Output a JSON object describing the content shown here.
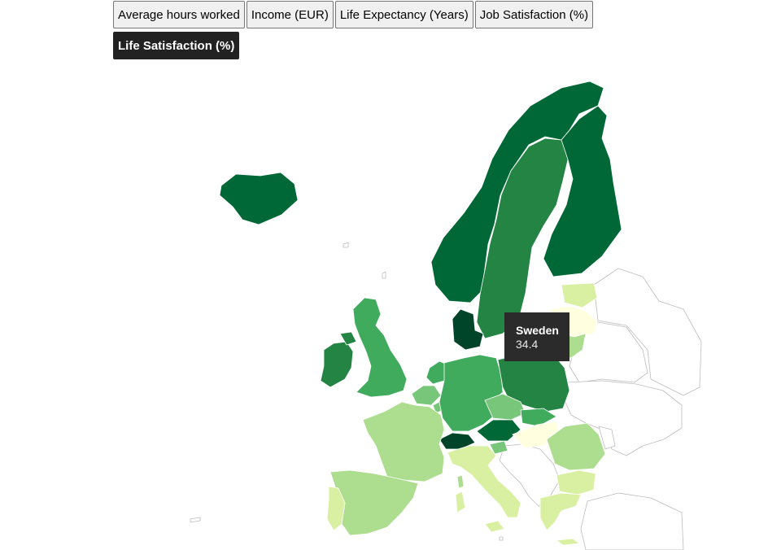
{
  "buttons": [
    {
      "label": "Average hours worked",
      "active": false
    },
    {
      "label": "Income (EUR)",
      "active": false
    },
    {
      "label": "Life Expectancy (Years)",
      "active": false
    },
    {
      "label": "Job Satisfaction (%)",
      "active": false
    },
    {
      "label": "Life Satisfaction (%)",
      "active": true
    }
  ],
  "colors": {
    "scale": [
      "#ffffe0",
      "#d9f0a3",
      "#addd8e",
      "#78c679",
      "#41ab5d",
      "#238443",
      "#006837",
      "#004529"
    ],
    "no_data": "#ffffff",
    "tooltip_bg": "#2b2b2b"
  },
  "tooltip": {
    "country": "Sweden",
    "value": "34.4"
  },
  "countries": [
    {
      "id": "iceland",
      "level": 6
    },
    {
      "id": "norway",
      "level": 6
    },
    {
      "id": "sweden",
      "level": 5
    },
    {
      "id": "finland",
      "level": 6
    },
    {
      "id": "denmark",
      "level": 7
    },
    {
      "id": "estonia",
      "level": 1
    },
    {
      "id": "latvia",
      "level": 0
    },
    {
      "id": "lithuania",
      "level": 2
    },
    {
      "id": "ireland",
      "level": 5
    },
    {
      "id": "northern-ireland",
      "level": 5
    },
    {
      "id": "united-kingdom",
      "level": 4
    },
    {
      "id": "netherlands",
      "level": 4
    },
    {
      "id": "belgium",
      "level": 3
    },
    {
      "id": "luxembourg",
      "level": 3
    },
    {
      "id": "germany",
      "level": 4
    },
    {
      "id": "poland",
      "level": 5
    },
    {
      "id": "czechia",
      "level": 3
    },
    {
      "id": "slovakia",
      "level": 4
    },
    {
      "id": "austria",
      "level": 6
    },
    {
      "id": "switzerland",
      "level": 7
    },
    {
      "id": "hungary",
      "level": 0
    },
    {
      "id": "slovenia",
      "level": 3
    },
    {
      "id": "france",
      "level": 2
    },
    {
      "id": "spain",
      "level": 2
    },
    {
      "id": "portugal",
      "level": 1
    },
    {
      "id": "italy",
      "level": 1
    },
    {
      "id": "sardinia",
      "level": 1
    },
    {
      "id": "corsica",
      "level": 2
    },
    {
      "id": "sicily",
      "level": 1
    },
    {
      "id": "romania",
      "level": 2
    },
    {
      "id": "bulgaria",
      "level": 1
    },
    {
      "id": "greece",
      "level": 1
    },
    {
      "id": "crete",
      "level": 1
    }
  ]
}
